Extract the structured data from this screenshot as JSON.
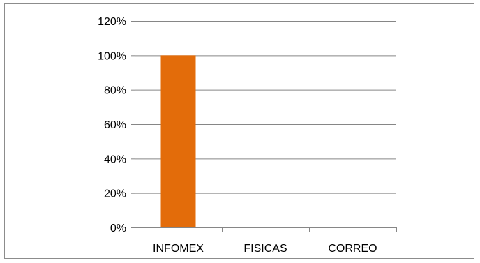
{
  "chart_data": {
    "type": "bar",
    "categories": [
      "INFOMEX",
      "FISICAS",
      "CORREO"
    ],
    "values": [
      100,
      0,
      0
    ],
    "title": "",
    "xlabel": "",
    "ylabel": "",
    "ylim": [
      0,
      120
    ],
    "yticks": [
      0,
      20,
      40,
      60,
      80,
      100,
      120
    ],
    "ytick_labels": [
      "0%",
      "20%",
      "40%",
      "60%",
      "80%",
      "100%",
      "120%"
    ],
    "grid": true,
    "legend": "none",
    "bar_color": "#e36c0a",
    "grid_color": "#868686",
    "axis_color": "#868686"
  }
}
